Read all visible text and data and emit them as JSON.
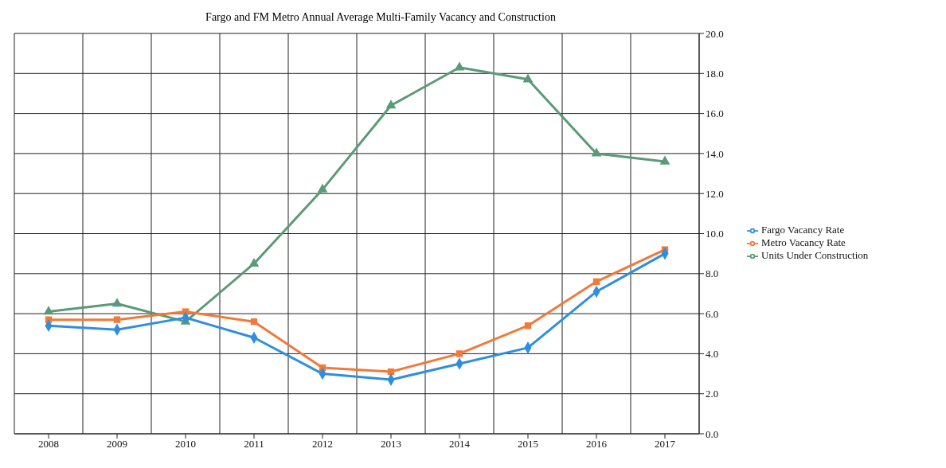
{
  "chart_data": {
    "type": "line",
    "title": "Fargo and FM Metro Annual Average Multi-Family Vacancy and Construction",
    "categories": [
      "2008",
      "2009",
      "2010",
      "2011",
      "2012",
      "2013",
      "2014",
      "2015",
      "2016",
      "2017"
    ],
    "series": [
      {
        "name": "Fargo Vacancy Rate",
        "color": "#2e8fe0",
        "marker": "diamond",
        "values": [
          5.4,
          5.2,
          5.8,
          4.8,
          3.0,
          2.7,
          3.5,
          4.3,
          7.1,
          9.0
        ]
      },
      {
        "name": "Metro Vacancy Rate",
        "color": "#f07a3a",
        "marker": "square",
        "values": [
          5.7,
          5.7,
          6.1,
          5.6,
          3.3,
          3.1,
          4.0,
          5.4,
          7.6,
          9.2
        ]
      },
      {
        "name": "Units Under Construction",
        "color": "#5a9a78",
        "marker": "triangle",
        "values": [
          6.1,
          6.5,
          5.6,
          8.5,
          12.2,
          16.4,
          18.3,
          17.7,
          14.0,
          13.6
        ]
      }
    ],
    "ylim": [
      0,
      20
    ],
    "yticks": [
      {
        "value": 0,
        "label": "0.0"
      },
      {
        "value": 2,
        "label": "2.0"
      },
      {
        "value": 4,
        "label": "4.0"
      },
      {
        "value": 6,
        "label": "6.0"
      },
      {
        "value": 8,
        "label": "8.0"
      },
      {
        "value": 10,
        "label": "10.0"
      },
      {
        "value": 12,
        "label": "12.0"
      },
      {
        "value": 14,
        "label": "14.0"
      },
      {
        "value": 16,
        "label": "16.0"
      },
      {
        "value": 18,
        "label": "18.0"
      },
      {
        "value": 20,
        "label": "20.0"
      }
    ],
    "grid": true,
    "legend": "right",
    "line_style": "solid"
  }
}
